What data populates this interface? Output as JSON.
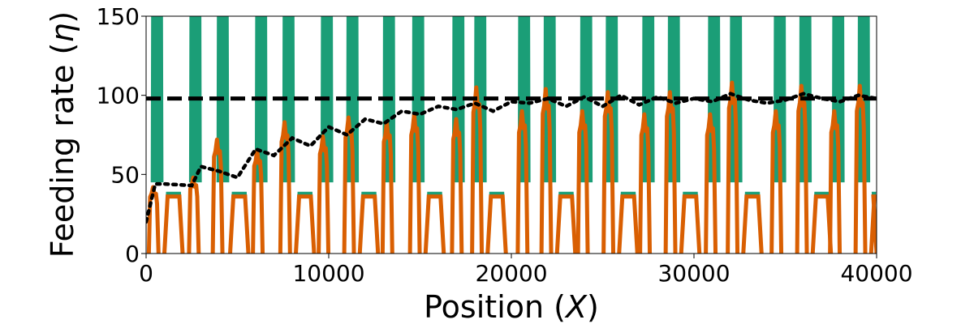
{
  "chart_data": {
    "type": "line",
    "title": "",
    "xlabel": "Position (X)",
    "ylabel": "Feeding rate (η)",
    "xlim": [
      0,
      40000
    ],
    "ylim": [
      0,
      150
    ],
    "xticks": [
      0,
      10000,
      20000,
      30000,
      40000
    ],
    "xtick_labels": [
      "0",
      "10000",
      "20000",
      "30000",
      "40000"
    ],
    "yticks": [
      0,
      50,
      100,
      150
    ],
    "ytick_labels": [
      "0",
      "50",
      "100",
      "150"
    ],
    "grid": false,
    "legend": "none",
    "series": [
      {
        "style": "solid-dense-oscillation",
        "color": "#1b9e77",
        "active_windows": [
          [
            300,
            900
          ],
          [
            2400,
            3000
          ],
          [
            3900,
            4500
          ],
          [
            6000,
            6600
          ],
          [
            7500,
            8100
          ],
          [
            9600,
            10200
          ],
          [
            11000,
            11600
          ],
          [
            13000,
            13600
          ],
          [
            14600,
            15200
          ],
          [
            16800,
            17400
          ],
          [
            18000,
            18600
          ],
          [
            20400,
            21000
          ],
          [
            21800,
            22400
          ],
          [
            23800,
            24400
          ],
          [
            25200,
            25800
          ],
          [
            27200,
            27800
          ],
          [
            28600,
            29200
          ],
          [
            30800,
            31400
          ],
          [
            32000,
            32600
          ],
          [
            34400,
            35000
          ],
          [
            35800,
            36400
          ],
          [
            37600,
            38200
          ],
          [
            39000,
            39600
          ]
        ],
        "peak": 150,
        "trough": 45,
        "plateau_windows": [
          [
            1000,
            2000
          ],
          [
            4600,
            5600
          ],
          [
            8200,
            9200
          ],
          [
            11700,
            12700
          ],
          [
            15300,
            16300
          ],
          [
            18700,
            19700
          ],
          [
            22500,
            23500
          ],
          [
            25900,
            26900
          ],
          [
            29300,
            30300
          ],
          [
            32700,
            33700
          ],
          [
            36500,
            37500
          ],
          [
            39700,
            40000
          ]
        ],
        "plateau_level": 38
      },
      {
        "style": "solid-thick",
        "color": "#d95f02",
        "peaks": [
          [
            600,
            42
          ],
          [
            2800,
            48
          ],
          [
            4100,
            72
          ],
          [
            6300,
            65
          ],
          [
            7800,
            83
          ],
          [
            9900,
            74
          ],
          [
            11300,
            86
          ],
          [
            13400,
            83
          ],
          [
            14900,
            88
          ],
          [
            17200,
            85
          ],
          [
            18300,
            105
          ],
          [
            20800,
            90
          ],
          [
            22100,
            104
          ],
          [
            24100,
            90
          ],
          [
            25500,
            102
          ],
          [
            27500,
            88
          ],
          [
            28900,
            102
          ],
          [
            31100,
            88
          ],
          [
            32300,
            108
          ],
          [
            34700,
            90
          ],
          [
            36100,
            106
          ],
          [
            37900,
            90
          ],
          [
            39300,
            106
          ]
        ],
        "plateau_level": 36
      },
      {
        "style": "dashed",
        "color": "#000000",
        "x": [
          0,
          40000
        ],
        "y": [
          98,
          98
        ]
      },
      {
        "style": "dotted",
        "color": "#000000",
        "x": [
          0,
          500,
          1000,
          2500,
          3000,
          4000,
          5000,
          6000,
          7000,
          8000,
          9000,
          10000,
          11000,
          12000,
          13000,
          14000,
          15000,
          16000,
          17000,
          18000,
          19000,
          20000,
          21000,
          22000,
          23000,
          24000,
          25000,
          26000,
          27000,
          28000,
          29000,
          30000,
          31000,
          32000,
          33000,
          34000,
          35000,
          36000,
          37000,
          38000,
          39000,
          40000
        ],
        "y": [
          20,
          44,
          44,
          43,
          55,
          52,
          48,
          66,
          62,
          73,
          68,
          80,
          75,
          85,
          82,
          90,
          88,
          93,
          91,
          95,
          90,
          96,
          95,
          98,
          93,
          99,
          93,
          100,
          94,
          99,
          95,
          98,
          96,
          101,
          97,
          95,
          97,
          101,
          98,
          96,
          100,
          98
        ]
      }
    ]
  },
  "axes": {
    "xlabel_plain": "Position (",
    "xlabel_var": "X",
    "xlabel_end": ")",
    "ylabel_plain": "Feeding rate (",
    "ylabel_var": "η",
    "ylabel_end": ")"
  }
}
